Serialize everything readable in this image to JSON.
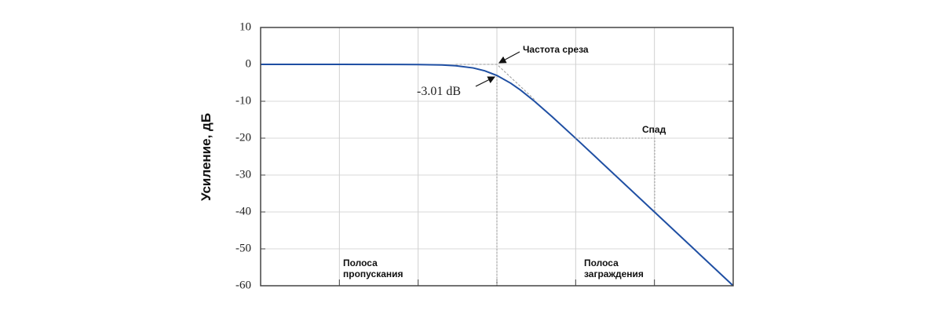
{
  "chart_data": {
    "type": "line",
    "y_label": "Усиление, дБ",
    "log_x": true,
    "grid": true,
    "xlim": [
      0.001,
      1000
    ],
    "xticks": [
      0.001,
      0.01,
      0.1,
      1,
      10,
      100,
      1000
    ],
    "ylim": [
      -60,
      10
    ],
    "yticks": [
      10,
      0,
      -10,
      -20,
      -30,
      -40,
      -50,
      -60
    ],
    "series": [
      {
        "color": "#1f4fa3",
        "x": [
          0.001,
          0.01,
          0.1,
          0.2,
          0.3,
          0.5,
          0.7,
          1,
          1.5,
          2,
          3,
          5,
          10,
          100,
          1000
        ],
        "values": [
          0,
          0,
          -0.04,
          -0.17,
          -0.37,
          -0.97,
          -1.74,
          -3.01,
          -5.12,
          -6.99,
          -10,
          -14.15,
          -20.04,
          -40,
          -60
        ]
      },
      {
        "color": "#999999",
        "dashed": true,
        "x": [
          0.3,
          1,
          3
        ],
        "values": [
          0,
          0,
          -9.54
        ]
      }
    ],
    "annotations": {
      "cutoff": "Частота среза",
      "attenuation": "-3.01 dB",
      "rolloff": "Спад",
      "passband": [
        "Полоса",
        "пропускания"
      ],
      "stopband": [
        "Полоса",
        "заграждения"
      ]
    }
  }
}
